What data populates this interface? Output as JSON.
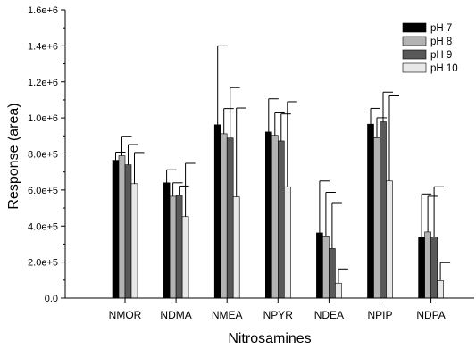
{
  "chart_data": {
    "type": "bar",
    "xlabel": "Nitrosamines",
    "ylabel": "Response (area)",
    "ylim": [
      0,
      1600000
    ],
    "yticks": [
      0,
      200000,
      400000,
      600000,
      800000,
      1000000,
      1200000,
      1400000,
      1600000
    ],
    "ytick_labels": [
      "0.0",
      "2.0e+5",
      "4.0e+5",
      "6.0e+5",
      "8.0e+5",
      "1.0e+6",
      "1.2e+6",
      "1.4e+6",
      "1.6e+6"
    ],
    "categories": [
      "NMOR",
      "NDMA",
      "NMEA",
      "NPYR",
      "NDEA",
      "NPIP",
      "NDPA"
    ],
    "legend_position": "top-right",
    "grid": false,
    "series": [
      {
        "name": "pH 7",
        "color": "#000000",
        "values": [
          765000,
          640000,
          962000,
          922000,
          362000,
          965000,
          340000
        ],
        "error_top": [
          810000,
          712000,
          1400000,
          1106000,
          650000,
          1053000,
          578000
        ]
      },
      {
        "name": "pH 8",
        "color": "#b3b3b3",
        "values": [
          790000,
          565000,
          912000,
          903000,
          345000,
          890000,
          367000
        ],
        "error_top": [
          898000,
          640000,
          1052000,
          1028000,
          587000,
          1001000,
          565000
        ]
      },
      {
        "name": "pH 9",
        "color": "#595959",
        "values": [
          740000,
          570000,
          888000,
          872000,
          275000,
          978000,
          340000
        ],
        "error_top": [
          852000,
          622000,
          1168000,
          1022000,
          530000,
          1143000,
          618000
        ]
      },
      {
        "name": "pH 10",
        "color": "#e8e8e8",
        "values": [
          635000,
          452000,
          562000,
          618000,
          83000,
          650000,
          97000
        ],
        "error_top": [
          808000,
          748000,
          1055000,
          1090000,
          162000,
          1127000,
          197000
        ]
      }
    ]
  }
}
